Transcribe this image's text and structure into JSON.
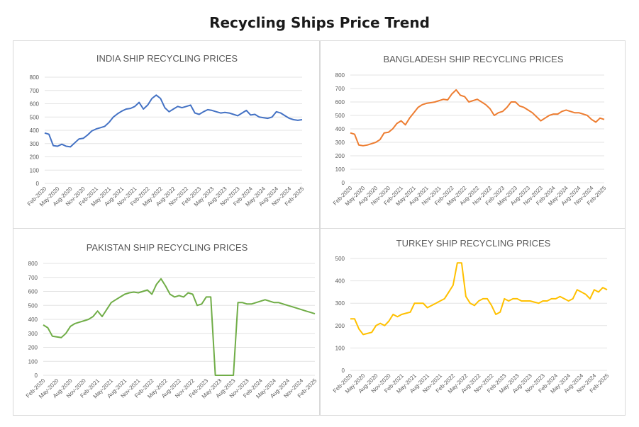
{
  "page_title": "Recycling Ships Price Trend",
  "x_tick_labels": [
    "Feb-2020",
    "May-2020",
    "Aug-2020",
    "Nov-2020",
    "Feb-2021",
    "May-2021",
    "Aug-2021",
    "Nov-2021",
    "Feb-2022",
    "May-2022",
    "Aug-2022",
    "Nov-2022",
    "Feb-2023",
    "May-2023",
    "Aug-2023",
    "Nov-2023",
    "Feb-2024",
    "May-2024",
    "Aug-2024",
    "Nov-2024",
    "Feb-2025"
  ],
  "chart_data": [
    {
      "type": "line",
      "title": "INDIA SHIP RECYCLING PRICES",
      "color": "#4472c4",
      "ylim": [
        0,
        800
      ],
      "yticks": [
        0,
        100,
        200,
        300,
        400,
        500,
        600,
        700,
        800
      ],
      "x": [
        "Feb-2020",
        "Mar-2020",
        "Apr-2020",
        "May-2020",
        "Jun-2020",
        "Jul-2020",
        "Aug-2020",
        "Sep-2020",
        "Oct-2020",
        "Nov-2020",
        "Dec-2020",
        "Jan-2021",
        "Feb-2021",
        "Mar-2021",
        "Apr-2021",
        "May-2021",
        "Jun-2021",
        "Jul-2021",
        "Aug-2021",
        "Sep-2021",
        "Oct-2021",
        "Nov-2021",
        "Dec-2021",
        "Jan-2022",
        "Feb-2022",
        "Mar-2022",
        "Apr-2022",
        "May-2022",
        "Jun-2022",
        "Jul-2022",
        "Aug-2022",
        "Sep-2022",
        "Oct-2022",
        "Nov-2022",
        "Dec-2022",
        "Jan-2023",
        "Feb-2023",
        "Mar-2023",
        "Apr-2023",
        "May-2023",
        "Jun-2023",
        "Jul-2023",
        "Aug-2023",
        "Sep-2023",
        "Oct-2023",
        "Nov-2023",
        "Dec-2023",
        "Jan-2024",
        "Feb-2024",
        "Mar-2024",
        "Apr-2024",
        "May-2024",
        "Jun-2024",
        "Jul-2024",
        "Aug-2024",
        "Sep-2024",
        "Oct-2024",
        "Nov-2024",
        "Dec-2024",
        "Jan-2025",
        "Feb-2025"
      ],
      "values": [
        380,
        370,
        285,
        280,
        295,
        280,
        275,
        305,
        335,
        340,
        365,
        395,
        410,
        420,
        430,
        460,
        500,
        525,
        545,
        560,
        565,
        580,
        610,
        560,
        590,
        640,
        665,
        640,
        570,
        540,
        560,
        580,
        570,
        580,
        590,
        530,
        520,
        540,
        555,
        550,
        540,
        530,
        535,
        530,
        520,
        510,
        530,
        550,
        515,
        520,
        500,
        495,
        490,
        500,
        540,
        530,
        510,
        490,
        480,
        475,
        480
      ]
    },
    {
      "type": "line",
      "title": "BANGLADESH SHIP RECYCLING PRICES",
      "color": "#ed7d31",
      "ylim": [
        0,
        800
      ],
      "yticks": [
        0,
        100,
        200,
        300,
        400,
        500,
        600,
        700,
        800
      ],
      "x": [
        "Feb-2020",
        "Mar-2020",
        "Apr-2020",
        "May-2020",
        "Jun-2020",
        "Jul-2020",
        "Aug-2020",
        "Sep-2020",
        "Oct-2020",
        "Nov-2020",
        "Dec-2020",
        "Jan-2021",
        "Feb-2021",
        "Mar-2021",
        "Apr-2021",
        "May-2021",
        "Jun-2021",
        "Jul-2021",
        "Aug-2021",
        "Sep-2021",
        "Oct-2021",
        "Nov-2021",
        "Dec-2021",
        "Jan-2022",
        "Feb-2022",
        "Mar-2022",
        "Apr-2022",
        "May-2022",
        "Jun-2022",
        "Jul-2022",
        "Aug-2022",
        "Sep-2022",
        "Oct-2022",
        "Nov-2022",
        "Dec-2022",
        "Jan-2023",
        "Feb-2023",
        "Mar-2023",
        "Apr-2023",
        "May-2023",
        "Jun-2023",
        "Jul-2023",
        "Aug-2023",
        "Sep-2023",
        "Oct-2023",
        "Nov-2023",
        "Dec-2023",
        "Jan-2024",
        "Feb-2024",
        "Mar-2024",
        "Apr-2024",
        "May-2024",
        "Jun-2024",
        "Jul-2024",
        "Aug-2024",
        "Sep-2024",
        "Oct-2024",
        "Nov-2024",
        "Dec-2024",
        "Jan-2025",
        "Feb-2025"
      ],
      "values": [
        370,
        360,
        280,
        275,
        280,
        290,
        300,
        320,
        370,
        375,
        400,
        440,
        460,
        430,
        480,
        520,
        560,
        580,
        590,
        595,
        600,
        610,
        620,
        615,
        660,
        690,
        650,
        640,
        600,
        610,
        620,
        600,
        580,
        550,
        500,
        520,
        530,
        560,
        600,
        600,
        570,
        560,
        540,
        520,
        490,
        460,
        480,
        500,
        510,
        510,
        530,
        540,
        530,
        520,
        520,
        510,
        500,
        470,
        450,
        480,
        470
      ]
    },
    {
      "type": "line",
      "title": "PAKISTAN SHIP RECYCLING PRICES",
      "color": "#70ad47",
      "ylim": [
        0,
        800
      ],
      "yticks": [
        0,
        100,
        200,
        300,
        400,
        500,
        600,
        700,
        800
      ],
      "x": [
        "Feb-2020",
        "Mar-2020",
        "Apr-2020",
        "May-2020",
        "Jun-2020",
        "Jul-2020",
        "Aug-2020",
        "Sep-2020",
        "Oct-2020",
        "Nov-2020",
        "Dec-2020",
        "Jan-2021",
        "Feb-2021",
        "Mar-2021",
        "Apr-2021",
        "May-2021",
        "Jun-2021",
        "Jul-2021",
        "Aug-2021",
        "Sep-2021",
        "Oct-2021",
        "Nov-2021",
        "Dec-2021",
        "Jan-2022",
        "Feb-2022",
        "Mar-2022",
        "Apr-2022",
        "May-2022",
        "Jun-2022",
        "Jul-2022",
        "Aug-2022",
        "Sep-2022",
        "Oct-2022",
        "Nov-2022",
        "Dec-2022",
        "Jan-2023",
        "Feb-2023",
        "Mar-2023",
        "Apr-2023",
        "May-2023",
        "Jun-2023",
        "Jul-2023",
        "Aug-2023",
        "Sep-2023",
        "Oct-2023",
        "Nov-2023",
        "Dec-2023",
        "Jan-2024",
        "Feb-2024",
        "Mar-2024",
        "Apr-2024",
        "May-2024",
        "Jun-2024",
        "Jul-2024",
        "Aug-2024",
        "Sep-2024",
        "Oct-2024",
        "Nov-2024",
        "Dec-2024",
        "Jan-2025",
        "Feb-2025"
      ],
      "values": [
        360,
        340,
        280,
        275,
        270,
        300,
        350,
        370,
        380,
        390,
        400,
        420,
        460,
        420,
        470,
        520,
        540,
        560,
        580,
        590,
        595,
        590,
        600,
        610,
        580,
        650,
        690,
        640,
        580,
        560,
        570,
        560,
        590,
        580,
        500,
        510,
        560,
        560,
        0,
        0,
        0,
        0,
        0,
        520,
        520,
        510,
        510,
        520,
        530,
        540,
        530,
        520,
        520,
        510,
        500,
        490,
        480,
        470,
        460,
        450,
        440
      ]
    },
    {
      "type": "line",
      "title": "TURKEY SHIP RECYCLING PRICES",
      "color": "#ffc000",
      "ylim": [
        0,
        500
      ],
      "yticks": [
        0,
        100,
        200,
        300,
        400,
        500
      ],
      "x": [
        "Feb-2020",
        "Mar-2020",
        "Apr-2020",
        "May-2020",
        "Jun-2020",
        "Jul-2020",
        "Aug-2020",
        "Sep-2020",
        "Oct-2020",
        "Nov-2020",
        "Dec-2020",
        "Jan-2021",
        "Feb-2021",
        "Mar-2021",
        "Apr-2021",
        "May-2021",
        "Jun-2021",
        "Jul-2021",
        "Aug-2021",
        "Sep-2021",
        "Oct-2021",
        "Nov-2021",
        "Dec-2021",
        "Jan-2022",
        "Feb-2022",
        "Mar-2022",
        "Apr-2022",
        "May-2022",
        "Jun-2022",
        "Jul-2022",
        "Aug-2022",
        "Sep-2022",
        "Oct-2022",
        "Nov-2022",
        "Dec-2022",
        "Jan-2023",
        "Feb-2023",
        "Mar-2023",
        "Apr-2023",
        "May-2023",
        "Jun-2023",
        "Jul-2023",
        "Aug-2023",
        "Sep-2023",
        "Oct-2023",
        "Nov-2023",
        "Dec-2023",
        "Jan-2024",
        "Feb-2024",
        "Mar-2024",
        "Apr-2024",
        "May-2024",
        "Jun-2024",
        "Jul-2024",
        "Aug-2024",
        "Sep-2024",
        "Oct-2024",
        "Nov-2024",
        "Dec-2024",
        "Jan-2025",
        "Feb-2025"
      ],
      "values": [
        230,
        230,
        185,
        160,
        165,
        170,
        200,
        210,
        200,
        220,
        250,
        240,
        250,
        255,
        260,
        300,
        300,
        300,
        280,
        290,
        300,
        310,
        320,
        350,
        380,
        480,
        480,
        330,
        300,
        290,
        310,
        320,
        320,
        290,
        250,
        260,
        320,
        310,
        320,
        320,
        310,
        310,
        310,
        305,
        300,
        310,
        310,
        320,
        320,
        330,
        320,
        310,
        320,
        360,
        350,
        340,
        320,
        360,
        350,
        370,
        360
      ]
    }
  ]
}
